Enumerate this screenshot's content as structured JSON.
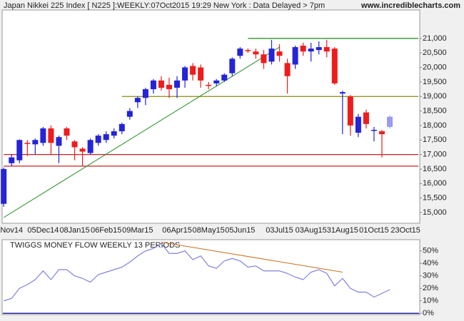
{
  "header": {
    "title": "Japan Nikkei 225 Index [ N225 ]:WEEKLY:07Oct2015 19:29 New York : Data Delayed > 7pm",
    "site": "www.incrediblecharts.com"
  },
  "chart_data": [
    {
      "type": "candlestick",
      "categories": [
        null,
        "Nov14",
        null,
        null,
        null,
        "05Dec14",
        null,
        null,
        null,
        "08Jan15",
        null,
        null,
        null,
        "06Feb15",
        null,
        null,
        null,
        "09Mar15",
        null,
        null,
        null,
        null,
        "06Apr15",
        null,
        null,
        null,
        "08May15",
        null,
        null,
        null,
        "05Jun15",
        null,
        null,
        null,
        null,
        "03Jul15",
        null,
        null,
        null,
        "03Aug15",
        null,
        null,
        null,
        "31Aug15",
        null,
        null,
        null,
        "01Oct15",
        null,
        null,
        null,
        "23Oct15"
      ],
      "open": [
        15300,
        16700,
        16800,
        17400,
        17350,
        17400,
        17900,
        17300,
        17900,
        17450,
        17200,
        17050,
        17400,
        17500,
        17650,
        17800,
        18300,
        18800,
        18950,
        19250,
        19550,
        19400,
        19300,
        19550,
        20050,
        20000,
        19400,
        19450,
        19550,
        19800,
        20400,
        20600,
        20550,
        20450,
        20200,
        20550,
        20150,
        20100,
        20750,
        20550,
        20600,
        20700,
        20650,
        19100,
        19000,
        17750,
        18450,
        17850,
        17800,
        17950,
        null,
        null
      ],
      "high": [
        16550,
        17000,
        17520,
        17500,
        17550,
        17950,
        18000,
        17650,
        17950,
        17500,
        17250,
        17550,
        17700,
        17800,
        17900,
        18100,
        18600,
        19000,
        19300,
        19600,
        19700,
        19650,
        19700,
        20050,
        20150,
        20100,
        19500,
        19600,
        19800,
        20350,
        20700,
        20650,
        20650,
        20600,
        20950,
        20800,
        20300,
        20750,
        20850,
        20850,
        20900,
        20950,
        20700,
        19200,
        19050,
        18400,
        18550,
        17950,
        17850,
        18350,
        null,
        null
      ],
      "low": [
        15200,
        16600,
        16700,
        16950,
        17000,
        17300,
        17000,
        16700,
        17500,
        16800,
        16600,
        17000,
        17300,
        17400,
        17550,
        17700,
        18200,
        18600,
        18700,
        19100,
        19200,
        18950,
        18950,
        19300,
        19550,
        19300,
        19250,
        19350,
        19500,
        19700,
        20300,
        20500,
        20300,
        19950,
        20100,
        20200,
        19100,
        19950,
        20400,
        20200,
        20450,
        20350,
        19400,
        17700,
        17650,
        17600,
        17900,
        17450,
        16900,
        17900,
        null,
        null
      ],
      "close": [
        16500,
        16900,
        17500,
        17380,
        17500,
        17900,
        17400,
        17600,
        17650,
        17250,
        17100,
        17500,
        17650,
        17700,
        17800,
        18050,
        18500,
        18950,
        19250,
        19550,
        19300,
        19250,
        19550,
        20000,
        19750,
        19550,
        19380,
        19550,
        19750,
        20300,
        20650,
        20580,
        20450,
        20150,
        20650,
        20400,
        19700,
        20700,
        20550,
        20650,
        20700,
        20550,
        19450,
        19150,
        18000,
        18300,
        18050,
        17850,
        17700,
        18300,
        null,
        null
      ],
      "up_color": "#2424d8",
      "down_color": "#ee1c1c",
      "last_color": "#9a9af0",
      "ylim": [
        14630,
        21980
      ],
      "yticks": [
        {
          "value": 15000,
          "label": "15,000"
        },
        {
          "value": 15500,
          "label": "15,500"
        },
        {
          "value": 16000,
          "label": "16,000"
        },
        {
          "value": 16500,
          "label": "16,500"
        },
        {
          "value": 17000,
          "label": "17,000"
        },
        {
          "value": 17500,
          "label": "17,500"
        },
        {
          "value": 18000,
          "label": "18,000"
        },
        {
          "value": 18500,
          "label": "18,500"
        },
        {
          "value": 19000,
          "label": "19,000"
        },
        {
          "value": 19500,
          "label": "19,500"
        },
        {
          "value": 20000,
          "label": "20,000"
        },
        {
          "value": 20500,
          "label": "20,500"
        },
        {
          "value": 21000,
          "label": "21,000"
        }
      ],
      "levels": [
        {
          "value": 21000,
          "start": 31,
          "color": "#1a8a1a"
        },
        {
          "value": 19000,
          "start": 15,
          "color": "#8a8a10"
        },
        {
          "value": 17000,
          "start": 0,
          "color": "#cc2020"
        },
        {
          "value": 16600,
          "start": 0,
          "color": "#cc2020"
        }
      ],
      "trendline": {
        "start": [
          0,
          14830
        ],
        "end": [
          35,
          20700
        ],
        "color": "#1a8a1a"
      }
    },
    {
      "type": "line",
      "title": "TWIGGS MONEY FLOW WEEKLY 13 PERIODS",
      "color": "#8080e0",
      "values": [
        10,
        12,
        20,
        23,
        27,
        34,
        27,
        35,
        35,
        30,
        28,
        25,
        31,
        33,
        35,
        37,
        41,
        46,
        50,
        52,
        56,
        48,
        48,
        50,
        43,
        46,
        38,
        36,
        42,
        44,
        42,
        37,
        38,
        34,
        34,
        34,
        32,
        29,
        27,
        33,
        35,
        32,
        22,
        28,
        20,
        17,
        17,
        13,
        16,
        19
      ],
      "ylim": [
        -1,
        59
      ],
      "yticks": [
        {
          "value": 0,
          "label": "0%"
        },
        {
          "value": 10,
          "label": "10%"
        },
        {
          "value": 20,
          "label": "20%"
        },
        {
          "value": 30,
          "label": "30%"
        },
        {
          "value": 40,
          "label": "40%"
        },
        {
          "value": 50,
          "label": "50%"
        }
      ],
      "zero_line_color": "#2a2aa0",
      "trendline": {
        "start": [
          20,
          57
        ],
        "end": [
          43,
          33
        ],
        "color": "#c87020"
      }
    }
  ]
}
